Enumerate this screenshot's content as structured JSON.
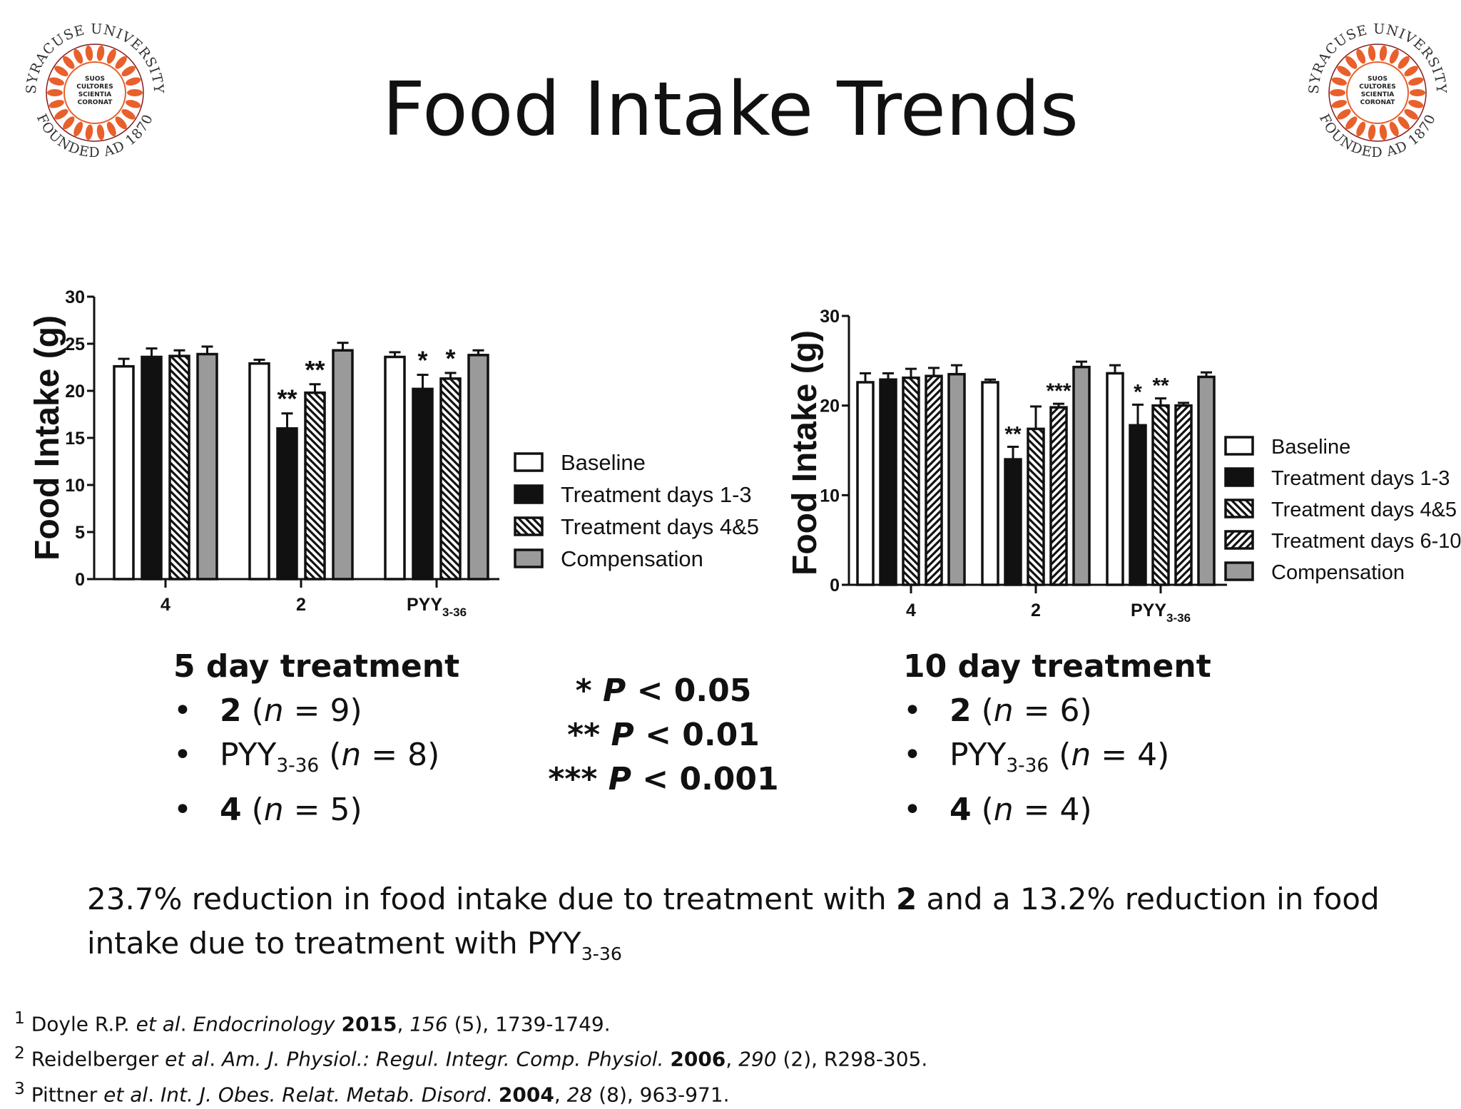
{
  "title": "Food Intake Trends",
  "seal": {
    "top_text": "SYRACUSE UNIVERSITY",
    "bottom_text": "FOUNDED AD 1870",
    "motto": [
      "SUOS",
      "CULTORES",
      "SCIENTIA",
      "CORONAT"
    ],
    "laurel_color": "#e8602c",
    "ring_color": "#8a1a1a"
  },
  "colors": {
    "baseline": "#ffffff",
    "treatment_1_3": "#111111",
    "compensation": "#9a9a9a",
    "outline": "#111111"
  },
  "chart_data": [
    {
      "type": "bar",
      "ylabel": "Food Intake (g)",
      "ylim": [
        0,
        30
      ],
      "yticks": [
        "0",
        "5",
        "10",
        "15",
        "20",
        "25",
        "30"
      ],
      "categories": [
        {
          "main": "4",
          "sub": ""
        },
        {
          "main": "2",
          "sub": ""
        },
        {
          "main": "PYY",
          "sub": "3-36"
        }
      ],
      "series": [
        {
          "name": "Baseline",
          "pattern": "white",
          "values": [
            22.6,
            22.9,
            23.6
          ],
          "errors": [
            0.8,
            0.4,
            0.5
          ],
          "sig": [
            "",
            "",
            ""
          ]
        },
        {
          "name": "Treatment days 1-3",
          "pattern": "black",
          "values": [
            23.6,
            16.0,
            20.2
          ],
          "errors": [
            0.9,
            1.6,
            1.5
          ],
          "sig": [
            "",
            "**",
            "*"
          ]
        },
        {
          "name": "Treatment days 4&5",
          "pattern": "hatch-back",
          "values": [
            23.7,
            19.8,
            21.3
          ],
          "errors": [
            0.6,
            0.9,
            0.6
          ],
          "sig": [
            "",
            "**",
            "*"
          ]
        },
        {
          "name": "Compensation",
          "pattern": "gray",
          "values": [
            23.9,
            24.3,
            23.8
          ],
          "errors": [
            0.8,
            0.8,
            0.5
          ],
          "sig": [
            "",
            "",
            ""
          ]
        }
      ],
      "legend": "right"
    },
    {
      "type": "bar",
      "ylabel": "Food Intake (g)",
      "ylim": [
        0,
        30
      ],
      "yticks": [
        "0",
        "10",
        "20",
        "30"
      ],
      "categories": [
        {
          "main": "4",
          "sub": ""
        },
        {
          "main": "2",
          "sub": ""
        },
        {
          "main": "PYY",
          "sub": "3-36"
        }
      ],
      "series": [
        {
          "name": "Baseline",
          "pattern": "white",
          "values": [
            22.6,
            22.6,
            23.6
          ],
          "errors": [
            1.0,
            0.3,
            0.9
          ],
          "sig": [
            "",
            "",
            ""
          ]
        },
        {
          "name": "Treatment days 1-3",
          "pattern": "black",
          "values": [
            22.9,
            14.0,
            17.8
          ],
          "errors": [
            0.7,
            1.4,
            2.3
          ],
          "sig": [
            "",
            "**",
            "*"
          ]
        },
        {
          "name": "Treatment days 4&5",
          "pattern": "hatch-back",
          "values": [
            23.1,
            17.4,
            20.0
          ],
          "errors": [
            1.0,
            2.5,
            0.8
          ],
          "sig": [
            "",
            "",
            "**"
          ]
        },
        {
          "name": "Treatment days 6-10",
          "pattern": "hatch-fwd",
          "values": [
            23.3,
            19.8,
            20.0
          ],
          "errors": [
            0.9,
            0.4,
            0.3
          ],
          "sig": [
            "",
            "***",
            ""
          ]
        },
        {
          "name": "Compensation",
          "pattern": "gray",
          "values": [
            23.5,
            24.3,
            23.2
          ],
          "errors": [
            1.0,
            0.6,
            0.5
          ],
          "sig": [
            "",
            "",
            ""
          ]
        }
      ],
      "legend": "right"
    }
  ],
  "five_day": {
    "heading": "5 day treatment",
    "items": [
      {
        "bold": "2",
        "sub": "",
        "n": "9"
      },
      {
        "bold": "PYY",
        "sub": "3-36",
        "n": "8"
      },
      {
        "bold": "4",
        "sub": "",
        "n": "5"
      }
    ]
  },
  "ten_day": {
    "heading": "10 day treatment",
    "items": [
      {
        "bold": "2",
        "sub": "",
        "n": "6"
      },
      {
        "bold": "PYY",
        "sub": "3-36",
        "n": "4"
      },
      {
        "bold": "4",
        "sub": "",
        "n": "4"
      }
    ]
  },
  "pvalues": [
    {
      "stars": "*",
      "label": "P",
      "rest": " < 0.05"
    },
    {
      "stars": "**",
      "label": "P",
      "rest": " < 0.01"
    },
    {
      "stars": "***",
      "label": "P",
      "rest": " < 0.001"
    }
  ],
  "summary": {
    "part1": "23.7% reduction in food intake due to treatment with ",
    "bold1": "2",
    "part2": " and a 13.2% reduction in food intake due to treatment with PYY",
    "sub": "3-36"
  },
  "references": [
    {
      "num": "1",
      "authors": "Doyle R.P. ",
      "etal": "et al",
      "dot": ". ",
      "journal": "Endocrinology",
      "sep": " ",
      "year": "2015",
      "comma": ", ",
      "vol": "156",
      "rest": " (5), 1739-1749."
    },
    {
      "num": "2",
      "authors": "Reidelberger ",
      "etal": "et al",
      "dot": ". ",
      "journal": "Am. J. Physiol.: Regul. Integr. Comp. Physiol.",
      "sep": " ",
      "year": "2006",
      "comma": ", ",
      "vol": "290",
      "rest": " (2), R298-305."
    },
    {
      "num": "3",
      "authors": "Pittner ",
      "etal": "et al",
      "dot": ". ",
      "journal": "Int. J. Obes. Relat. Metab. Disord",
      "sep": ". ",
      "year": "2004",
      "comma": ", ",
      "vol": "28",
      "rest": " (8), 963-971."
    }
  ]
}
